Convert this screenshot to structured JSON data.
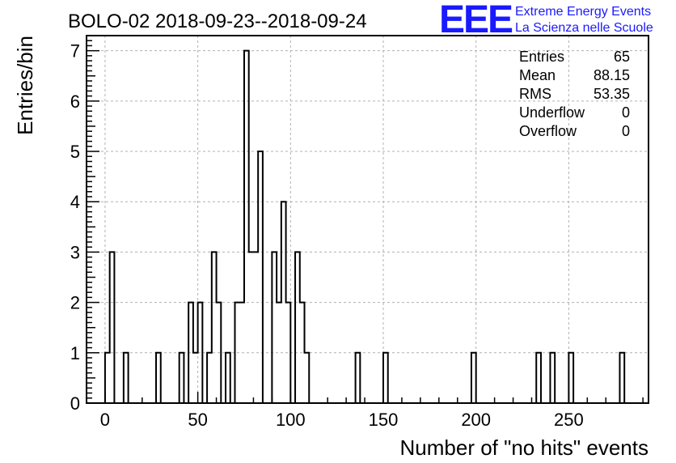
{
  "chart_data": {
    "type": "bar",
    "title": "BOLO-02 2018-09-23--2018-09-24",
    "xlabel": "Number of \"no hits\" events",
    "ylabel": "Entries/bin",
    "xlim": [
      -10,
      293
    ],
    "ylim": [
      0,
      7.3
    ],
    "bin_width": 2.5,
    "grid": true,
    "x_ticks": [
      0,
      50,
      100,
      150,
      200,
      250
    ],
    "y_ticks": [
      0,
      1,
      2,
      3,
      4,
      5,
      6,
      7
    ],
    "bins": [
      {
        "x": 0,
        "count": 1
      },
      {
        "x": 2.5,
        "count": 3
      },
      {
        "x": 10,
        "count": 1
      },
      {
        "x": 27.5,
        "count": 1
      },
      {
        "x": 40,
        "count": 1
      },
      {
        "x": 45,
        "count": 2
      },
      {
        "x": 47.5,
        "count": 1
      },
      {
        "x": 50,
        "count": 2
      },
      {
        "x": 55,
        "count": 1
      },
      {
        "x": 57.5,
        "count": 3
      },
      {
        "x": 60,
        "count": 2
      },
      {
        "x": 65,
        "count": 1
      },
      {
        "x": 70,
        "count": 2
      },
      {
        "x": 72.5,
        "count": 2
      },
      {
        "x": 75,
        "count": 7
      },
      {
        "x": 77.5,
        "count": 3
      },
      {
        "x": 80,
        "count": 3
      },
      {
        "x": 82.5,
        "count": 5
      },
      {
        "x": 90,
        "count": 3
      },
      {
        "x": 92.5,
        "count": 2
      },
      {
        "x": 95,
        "count": 4
      },
      {
        "x": 97.5,
        "count": 2
      },
      {
        "x": 102.5,
        "count": 3
      },
      {
        "x": 105,
        "count": 2
      },
      {
        "x": 107.5,
        "count": 1
      },
      {
        "x": 135,
        "count": 1
      },
      {
        "x": 150,
        "count": 1
      },
      {
        "x": 197.5,
        "count": 1
      },
      {
        "x": 232.5,
        "count": 1
      },
      {
        "x": 240,
        "count": 1
      },
      {
        "x": 250,
        "count": 1
      },
      {
        "x": 277.5,
        "count": 1
      }
    ],
    "stats": [
      {
        "label": "Entries",
        "value": "65"
      },
      {
        "label": "Mean",
        "value": "88.15"
      },
      {
        "label": "RMS",
        "value": "53.35"
      },
      {
        "label": "Underflow",
        "value": "0"
      },
      {
        "label": "Overflow",
        "value": "0"
      }
    ]
  },
  "logo": {
    "letters": "EEE",
    "line1": "Extreme Energy Events",
    "line2": "La Scienza nelle Scuole"
  },
  "colors": {
    "logo": "#1a1aff",
    "grid": "#b0b0b0",
    "line": "#000000"
  }
}
